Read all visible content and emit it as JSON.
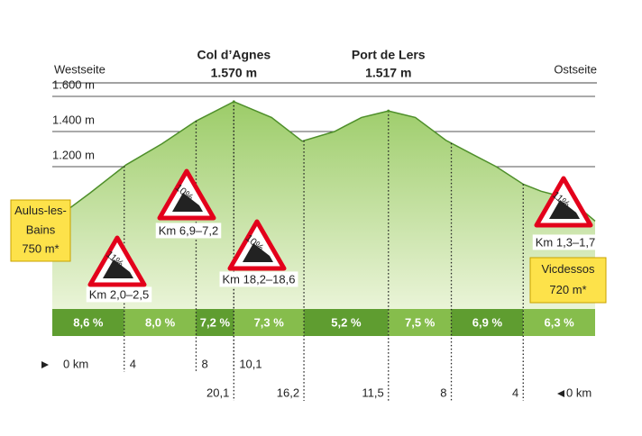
{
  "chart_data": {
    "type": "area",
    "header_left": "Westseite",
    "header_right": "Ostseite",
    "x": [
      0,
      2.1,
      4.1,
      6.1,
      8,
      10.1,
      12.2,
      13.9,
      15.7,
      17.2,
      18.7,
      20.2,
      21.9,
      23.2,
      24.7,
      26.2,
      27.2,
      28.7,
      30.2
    ],
    "values": [
      890,
      1050,
      1210,
      1330,
      1460,
      1570,
      1480,
      1345,
      1400,
      1480,
      1517,
      1480,
      1350,
      1280,
      1200,
      1100,
      1060,
      1020,
      890
    ],
    "color": "#4e8f2a",
    "xlim": [
      0,
      30.2
    ],
    "xticks": [
      {
        "value": 0,
        "label": "0 km"
      },
      4,
      8,
      {
        "value": 10.1,
        "label": "10,1"
      }
    ],
    "x2lim": [
      30.2,
      0
    ],
    "x2ticks": [
      {
        "value": 20.1,
        "label": "20,1"
      },
      {
        "value": 16.2,
        "label": "16,2"
      },
      {
        "value": 11.5,
        "label": "11,5"
      },
      8,
      4,
      {
        "value": 0,
        "label": "0 km"
      }
    ],
    "ylim": [
      400,
      1600
    ],
    "yticks": [
      {
        "value": 1600,
        "label": "1.600 m"
      },
      {
        "value": 1400,
        "label": "1.400 m"
      },
      {
        "value": 1200,
        "label": "1.200 m"
      }
    ],
    "grid": true,
    "passes": [
      {
        "name": "Col d’Agnes",
        "x": 10.1,
        "value": 1570,
        "value_label": "1.570 m"
      },
      {
        "name": "Port de Lers",
        "x": 18.7,
        "value": 1517,
        "value_label": "1.517 m"
      }
    ],
    "towns": [
      {
        "name": [
          "Aulus-les-",
          "Bains"
        ],
        "value": 750,
        "value_label": "750 m*"
      },
      {
        "name": [
          "Vicdessos"
        ],
        "value": 720,
        "value_label": "720 m*"
      }
    ],
    "segments": {
      "bounds": [
        0,
        4,
        8,
        10.1,
        14,
        18.7,
        22.2,
        26.2,
        30.2
      ],
      "values": [
        8.6,
        8.0,
        7.2,
        7.3,
        5.2,
        7.5,
        6.9,
        6.3
      ],
      "value_labels": [
        "8,6 %",
        "8,0 %",
        "7,2 %",
        "7,3 %",
        "5,2 %",
        "7,5 %",
        "6,9 %",
        "6,3 %"
      ]
    },
    "steepest": {
      "values": [
        11,
        10,
        10,
        11
      ],
      "value_labels": [
        "11%",
        "10%",
        "10%",
        "11%"
      ],
      "ranges": [
        "Km 2,0–2,5",
        "Km 6,9–7,2",
        "Km 18,2–18,6",
        "Km 1,3–1,7"
      ]
    }
  }
}
